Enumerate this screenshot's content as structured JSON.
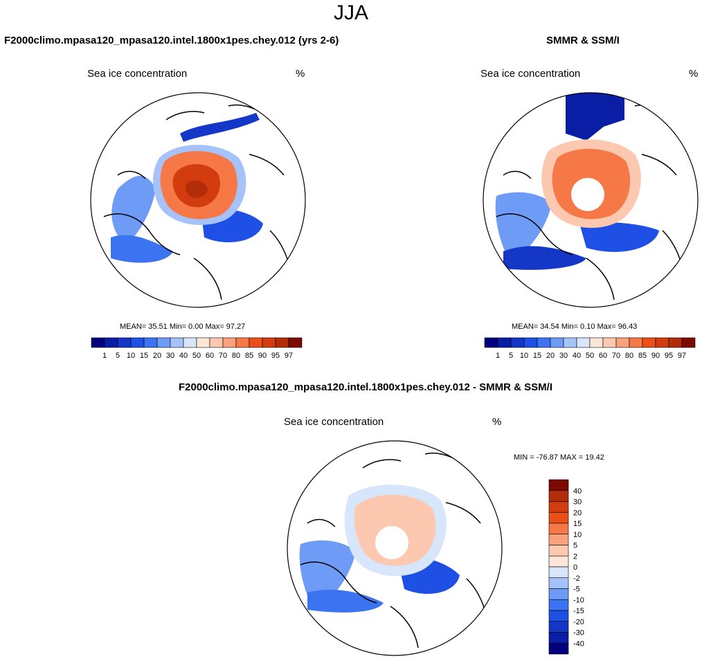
{
  "season": "JJA",
  "panels": [
    {
      "id": "model",
      "title": "F2000climo.mpasa120_mpasa120.intel.1800x1pes.chey.012 (yrs 2-6)",
      "left_label": "Sea ice concentration",
      "right_label": "%",
      "stats": "MEAN=  35.51  Min=   0.00  Max=  97.27"
    },
    {
      "id": "obs",
      "title": "SMMR & SSM/I",
      "left_label": "Sea ice concentration",
      "right_label": "%",
      "stats": "MEAN=  34.54  Min=   0.10  Max=  96.43"
    },
    {
      "id": "diff",
      "title": "F2000climo.mpasa120_mpasa120.intel.1800x1pes.chey.012 - SMMR & SSM/I",
      "left_label": "Sea ice concentration",
      "right_label": "%",
      "stats": "MIN = -76.87 MAX =  19.42"
    }
  ],
  "colorbar_levels": {
    "levels": [
      "1",
      "5",
      "10",
      "15",
      "20",
      "30",
      "40",
      "50",
      "60",
      "70",
      "80",
      "85",
      "90",
      "95",
      "97"
    ],
    "colors": [
      "#00007f",
      "#0a1ea5",
      "#1437c8",
      "#1e50e6",
      "#3c73f0",
      "#6e9bf5",
      "#a5c3f8",
      "#d7e6fa",
      "#fde6d7",
      "#fcc8b0",
      "#f9a07d",
      "#f57846",
      "#eb5019",
      "#d23c0f",
      "#b42d0a",
      "#7d0a00"
    ]
  },
  "colorbar_diff": {
    "levels": [
      "40",
      "30",
      "20",
      "15",
      "10",
      "5",
      "2",
      "0",
      "-2",
      "-5",
      "-10",
      "-15",
      "-20",
      "-30",
      "-40"
    ],
    "colors": [
      "#7d0a00",
      "#b42d0a",
      "#d23c0f",
      "#eb5019",
      "#f57846",
      "#f9a07d",
      "#fcc8b0",
      "#fde6d7",
      "#d7e6fa",
      "#a5c3f8",
      "#6e9bf5",
      "#3c73f0",
      "#1e50e6",
      "#1437c8",
      "#0a1ea5",
      "#00007f"
    ]
  },
  "chart_data": [
    {
      "type": "heatmap",
      "title": "F2000climo.mpasa120_mpasa120.intel.1800x1pes.chey.012 (yrs 2-6)",
      "subtitle": "Sea ice concentration",
      "units": "%",
      "mean": 35.51,
      "min": 0.0,
      "max": 97.27,
      "contour_levels": [
        1,
        5,
        10,
        15,
        20,
        30,
        40,
        50,
        60,
        70,
        80,
        85,
        90,
        95,
        97
      ]
    },
    {
      "type": "heatmap",
      "title": "SMMR & SSM/I",
      "subtitle": "Sea ice concentration",
      "units": "%",
      "mean": 34.54,
      "min": 0.1,
      "max": 96.43,
      "contour_levels": [
        1,
        5,
        10,
        15,
        20,
        30,
        40,
        50,
        60,
        70,
        80,
        85,
        90,
        95,
        97
      ]
    },
    {
      "type": "heatmap",
      "title": "F2000climo.mpasa120_mpasa120.intel.1800x1pes.chey.012 - SMMR & SSM/I",
      "subtitle": "Sea ice concentration",
      "units": "%",
      "min": -76.87,
      "max": 19.42,
      "contour_levels": [
        -40,
        -30,
        -20,
        -15,
        -10,
        -5,
        -2,
        0,
        2,
        5,
        10,
        15,
        20,
        30,
        40
      ]
    }
  ]
}
